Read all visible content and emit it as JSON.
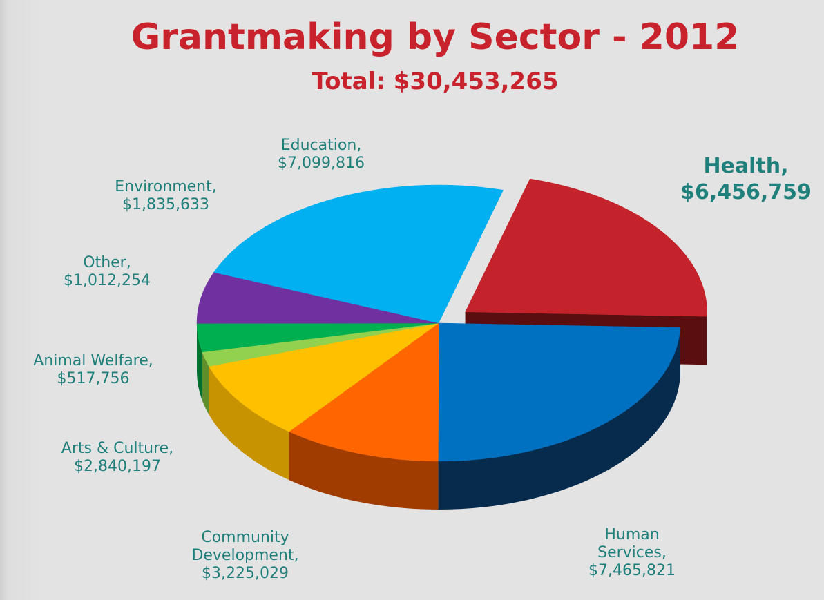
{
  "title": "Grantmaking by Sector - 2012",
  "subtitle": "Total: $30,453,265",
  "chart_data": {
    "type": "pie",
    "title": "Grantmaking by Sector - 2012",
    "subtitle": "Total: $30,453,265",
    "total": 30453265,
    "slices": [
      {
        "name": "Health",
        "value": 6456759,
        "label": "Health,\n$6,456,759",
        "color": "#c4232b",
        "side": "#5a0e10",
        "exploded": true
      },
      {
        "name": "Human Services",
        "value": 7465821,
        "label": "Human\nServices,\n$7,465,821",
        "color": "#0070c0",
        "side": "#072b4d"
      },
      {
        "name": "Community Development",
        "value": 3225029,
        "label": "Community\nDevelopment,\n$3,225,029",
        "color": "#ff6600",
        "side": "#a03c00"
      },
      {
        "name": "Arts & Culture",
        "value": 2840197,
        "label": "Arts & Culture,\n$2,840,197",
        "color": "#ffc000",
        "side": "#c79300"
      },
      {
        "name": "Animal Welfare",
        "value": 517756,
        "label": "Animal Welfare,\n$517,756",
        "color": "#92d050",
        "side": "#5e8f2c"
      },
      {
        "name": "Other",
        "value": 1012254,
        "label": "Other,\n$1,012,254",
        "color": "#00b050",
        "side": "#00702f"
      },
      {
        "name": "Environment",
        "value": 1835633,
        "label": "Environment,\n$1,835,633",
        "color": "#7030a0",
        "side": "#42195f"
      },
      {
        "name": "Education",
        "value": 7099816,
        "label": "Education,\n$7,099,816",
        "color": "#00b0f0",
        "side": "#0080b0"
      }
    ],
    "legend": "none"
  }
}
